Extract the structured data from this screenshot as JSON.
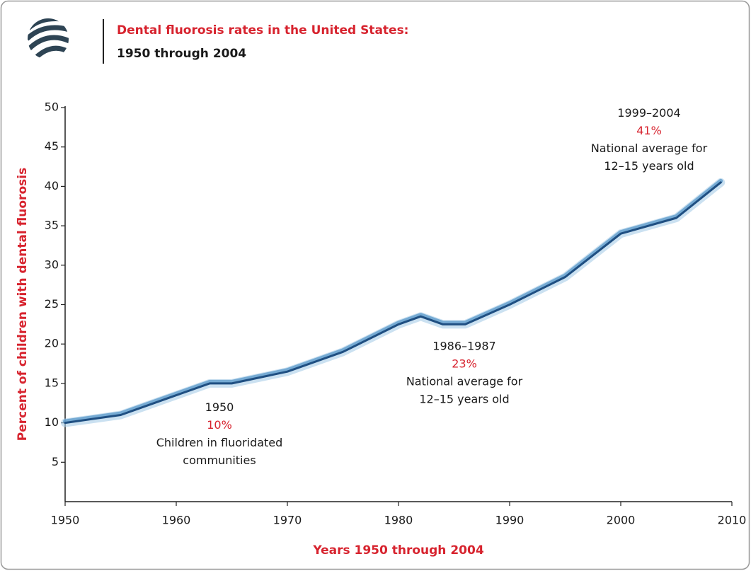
{
  "chart_data": {
    "type": "line",
    "title": "Dental fluorosis rates in the United States:",
    "subtitle": "1950 through 2004",
    "y_label": "Percent of children with dental fluorosis",
    "x_label": "Years 1950 through 2004",
    "x": [
      1950,
      1955,
      1957,
      1960,
      1963,
      1965,
      1970,
      1975,
      1980,
      1982,
      1984,
      1986,
      1990,
      1995,
      2000,
      2005,
      2009
    ],
    "series": [
      {
        "name": "Dental fluorosis",
        "color": "#1f4f82",
        "values": [
          10,
          11,
          12,
          13.5,
          15,
          15,
          16.5,
          19,
          22.5,
          23.5,
          22.5,
          22.5,
          25,
          28.5,
          34,
          36,
          40.5
        ]
      }
    ],
    "xlim": [
      1950,
      2010
    ],
    "xticks": [
      1950,
      1960,
      1970,
      1980,
      1990,
      2000,
      2010
    ],
    "ylim": [
      0,
      50
    ],
    "yticks": [
      5,
      10,
      15,
      20,
      25,
      30,
      35,
      40,
      45,
      50
    ],
    "annotations": [
      {
        "period": "1950",
        "percent": {
          "value": 10,
          "label": "10%"
        },
        "text": [
          "Children in fluoridated",
          "communities"
        ]
      },
      {
        "period": "1986–1987",
        "percent": {
          "value": 23,
          "label": "23%"
        },
        "text": [
          "National average for",
          "12–15 years old"
        ]
      },
      {
        "period": "1999–2004",
        "percent": {
          "value": 41,
          "label": "41%"
        },
        "text": [
          "National average for",
          "12–15 years old"
        ]
      }
    ]
  }
}
